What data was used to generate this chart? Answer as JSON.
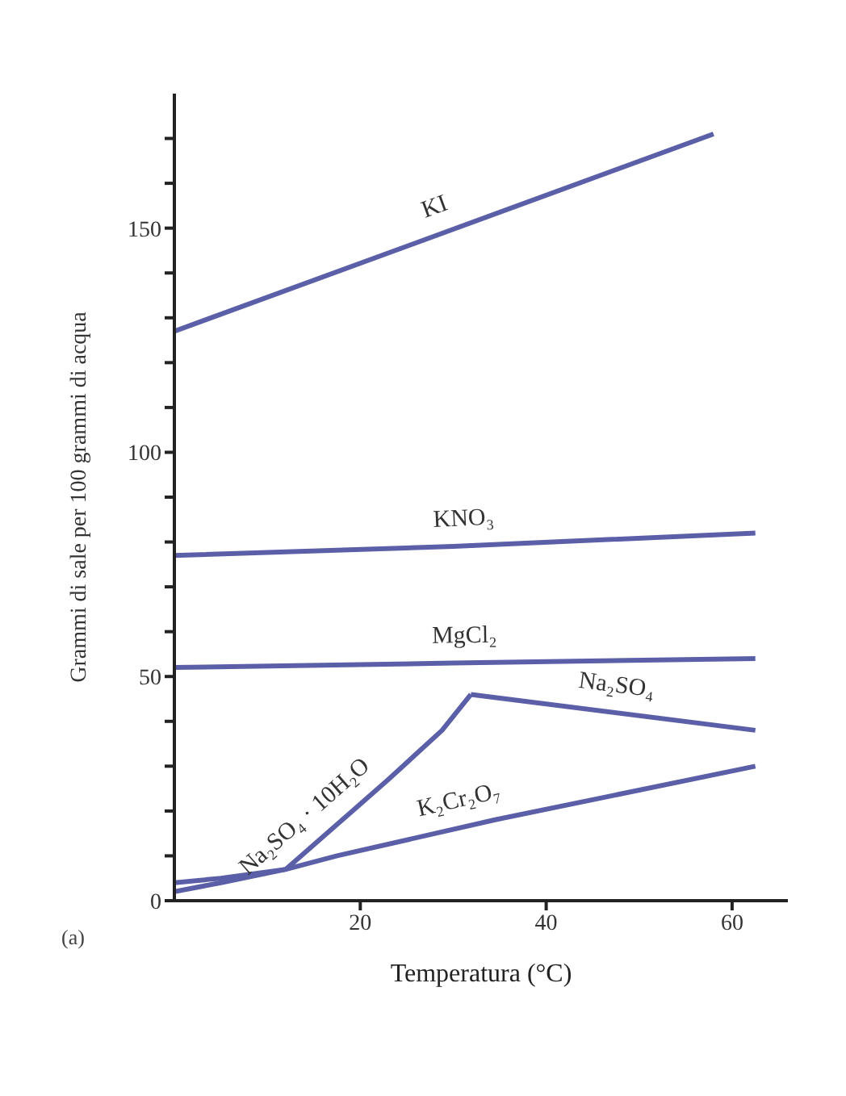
{
  "chart_data": {
    "type": "line",
    "xlabel": "Temperatura (°C)",
    "ylabel": "Grammi di sale per 100 grammi di acqua",
    "xlim": [
      0,
      66
    ],
    "xticks": [
      20,
      40,
      60
    ],
    "ylim": [
      0,
      180
    ],
    "yticks": [
      0,
      {
        "value": 10,
        "label": null
      },
      {
        "value": 20,
        "label": null
      },
      {
        "value": 30,
        "label": null
      },
      {
        "value": 40,
        "label": null
      },
      50,
      {
        "value": 60,
        "label": null
      },
      {
        "value": 70,
        "label": null
      },
      {
        "value": 80,
        "label": null
      },
      {
        "value": 90,
        "label": null
      },
      100,
      {
        "value": 110,
        "label": null
      },
      {
        "value": 120,
        "label": null
      },
      {
        "value": 130,
        "label": null
      },
      {
        "value": 140,
        "label": null
      },
      150,
      {
        "value": 160,
        "label": null
      },
      {
        "value": 170,
        "label": null
      }
    ],
    "grid": false,
    "legend": false,
    "marker": "none",
    "line_style": "solid",
    "series": [
      {
        "name": "KI",
        "color": "#5a5fa8",
        "x": [
          0,
          58
        ],
        "values": [
          127,
          171
        ]
      },
      {
        "name": "KNO₃",
        "color": "#5a5fa8",
        "x": [
          0,
          30,
          62.5
        ],
        "values": [
          77,
          79,
          82
        ]
      },
      {
        "name": "MgCl₂",
        "color": "#5a5fa8",
        "x": [
          0,
          30,
          62.5
        ],
        "values": [
          52,
          53,
          54
        ]
      },
      {
        "name": "Na₂SO₄ · 10H₂O",
        "color": "#5a5fa8",
        "x": [
          0,
          5,
          12,
          17.5,
          23,
          28.8,
          31.9
        ],
        "values": [
          4,
          5,
          7,
          17,
          27,
          38,
          46
        ]
      },
      {
        "name": "Na₂SO₄",
        "color": "#5a5fa8",
        "x": [
          31.9,
          62.5
        ],
        "values": [
          46,
          38
        ]
      },
      {
        "name": "K₂Cr₂O₇",
        "color": "#5a5fa8",
        "x": [
          0,
          5,
          12,
          17.5,
          34.4,
          62.5
        ],
        "values": [
          2,
          4,
          7,
          10,
          18,
          30
        ]
      }
    ],
    "annotations": [
      "(a)"
    ]
  }
}
